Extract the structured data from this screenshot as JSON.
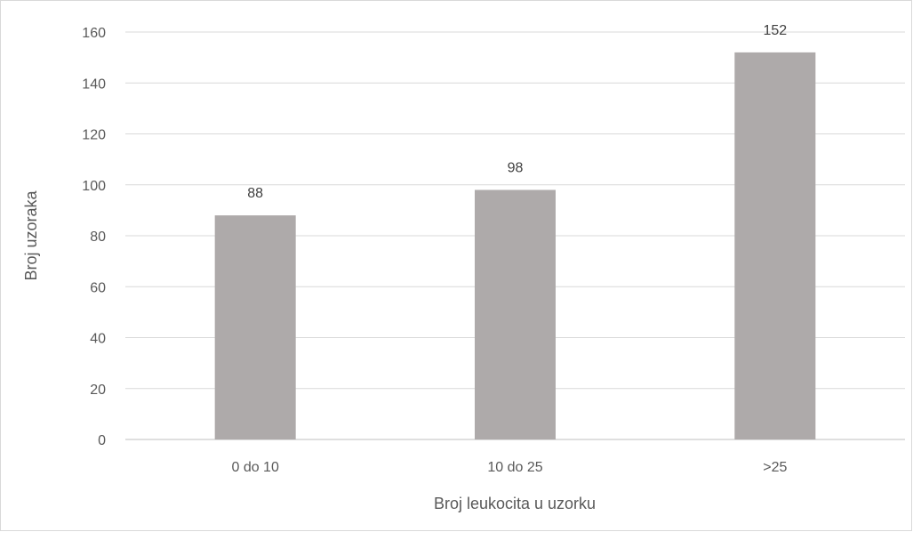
{
  "chart_data": {
    "type": "bar",
    "categories": [
      "0 do 10",
      "10 do 25",
      ">25"
    ],
    "values": [
      88,
      98,
      152
    ],
    "data_labels": [
      "88",
      "98",
      "152"
    ],
    "title": "",
    "xlabel": "Broj leukocita u uzorku",
    "ylabel": "Broj uzoraka",
    "ylim": [
      0,
      160
    ],
    "yticks": [
      "0",
      "20",
      "40",
      "60",
      "80",
      "100",
      "120",
      "140",
      "160"
    ],
    "grid": true,
    "legend": "none",
    "bar_color": "#aeaaaa",
    "grid_color": "#d9d9d9"
  }
}
